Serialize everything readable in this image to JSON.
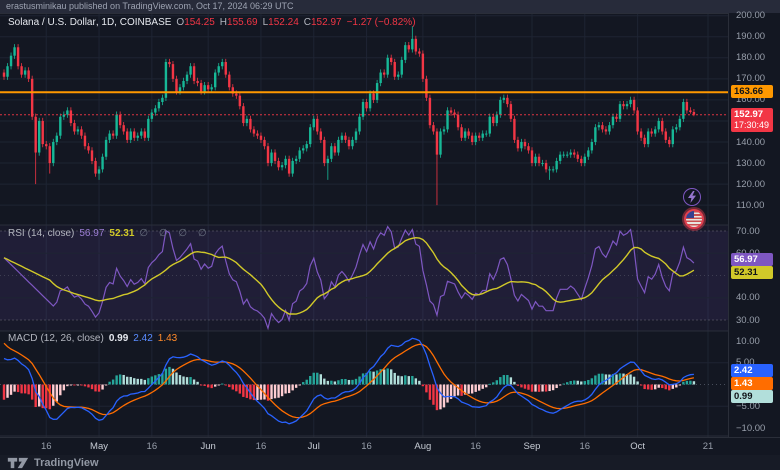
{
  "attribution": "erastusminikau published on TradingView.com, Oct 17, 2024 06:29 UTC",
  "footer": {
    "brand": "TradingView"
  },
  "colors": {
    "background": "#131722",
    "grid": "#1e2433",
    "separator": "#2a2e39",
    "up": "#17b897",
    "down": "#f23645",
    "avg_line": "#ff9800",
    "last_price": "#f23645",
    "rsi_line": "#7e57c2",
    "rsi_ma": "#d1c929",
    "rsi_band_fill": "#7e57c2",
    "macd_line": "#2962ff",
    "macd_signal": "#ff6d00",
    "hist_grow_above": "#26a69a",
    "hist_fall_above": "#b2dfdb",
    "hist_fall_below": "#f23645",
    "hist_grow_below": "#ffcdd2"
  },
  "chart_data": [
    {
      "type": "candlestick",
      "title": "Solana / U.S. Dollar",
      "subtitle": ", 1D, COINBASE",
      "legend": {
        "o_label": "O",
        "o_value": "154.25",
        "h_label": "H",
        "h_value": "155.69",
        "l_label": "L",
        "l_value": "152.24",
        "c_label": "C",
        "c_value": "152.97",
        "change": "−1.27 (−0.82%)"
      },
      "ylim": [
        108,
        201
      ],
      "y_ticks": [
        200,
        190,
        180,
        170,
        160,
        150,
        140,
        130,
        120,
        110
      ],
      "avg_line": {
        "value": 163.66,
        "label": "163.66"
      },
      "last_price": {
        "value": 152.97,
        "label": "152.97",
        "countdown": "17:30:49"
      },
      "x_ticks": [
        {
          "label": "16",
          "day": 12
        },
        {
          "label": "May",
          "day": 27
        },
        {
          "label": "16",
          "day": 42
        },
        {
          "label": "Jun",
          "day": 58
        },
        {
          "label": "16",
          "day": 73
        },
        {
          "label": "Jul",
          "day": 88
        },
        {
          "label": "16",
          "day": 103
        },
        {
          "label": "Aug",
          "day": 119
        },
        {
          "label": "16",
          "day": 134
        },
        {
          "label": "Sep",
          "day": 150
        },
        {
          "label": "16",
          "day": 165
        },
        {
          "label": "Oct",
          "day": 180
        },
        {
          "label": "21",
          "day": 200
        }
      ],
      "candles": [
        [
          173,
          174.5,
          169.5,
          171
        ],
        [
          171,
          177.5,
          169.5,
          176
        ],
        [
          176,
          182.5,
          174.5,
          181
        ],
        [
          181,
          186.5,
          179.5,
          185
        ],
        [
          185,
          186.5,
          174.5,
          176
        ],
        [
          176,
          177.5,
          170.5,
          172
        ],
        [
          172,
          175.5,
          170.5,
          174
        ],
        [
          174,
          175.5,
          168.5,
          170
        ],
        [
          170,
          171.5,
          150.5,
          152
        ],
        [
          152,
          153.5,
          120,
          135
        ],
        [
          135,
          151.5,
          133.5,
          150
        ],
        [
          150,
          151.5,
          137.5,
          139
        ],
        [
          139,
          140.5,
          136.5,
          138
        ],
        [
          138,
          139.5,
          125,
          130
        ],
        [
          130,
          141.5,
          128.5,
          140
        ],
        [
          140,
          144.5,
          138.5,
          143
        ],
        [
          143,
          153.5,
          141.5,
          152
        ],
        [
          152,
          154.5,
          150.5,
          153
        ],
        [
          153,
          156.5,
          151.5,
          155
        ],
        [
          155,
          156.5,
          147.5,
          149
        ],
        [
          149,
          150.5,
          143.5,
          145
        ],
        [
          145,
          147.5,
          143.5,
          146
        ],
        [
          146,
          147.5,
          141.5,
          143
        ],
        [
          143,
          144.5,
          136.5,
          138
        ],
        [
          138,
          139.5,
          134.5,
          136
        ],
        [
          136,
          137.5,
          129.5,
          131
        ],
        [
          131,
          132.5,
          123.5,
          125
        ],
        [
          125,
          128.5,
          122,
          127
        ],
        [
          127,
          134.5,
          125.5,
          133
        ],
        [
          133,
          142.5,
          131.5,
          141
        ],
        [
          141,
          145.5,
          139.5,
          144
        ],
        [
          144,
          145.5,
          141.5,
          143
        ],
        [
          143,
          154.5,
          141.5,
          153
        ],
        [
          153,
          154.5,
          146.5,
          148
        ],
        [
          148,
          149.5,
          143.5,
          145
        ],
        [
          145,
          146.5,
          139.5,
          141
        ],
        [
          141,
          146.5,
          139.5,
          145
        ],
        [
          145,
          146.5,
          140.5,
          142
        ],
        [
          142,
          144.5,
          140.5,
          143
        ],
        [
          143,
          146.5,
          141.5,
          145
        ],
        [
          145,
          146.5,
          140.5,
          142
        ],
        [
          142,
          152.5,
          140.5,
          151
        ],
        [
          151,
          155.5,
          149.5,
          154
        ],
        [
          154,
          157.5,
          152.5,
          156
        ],
        [
          156,
          160.5,
          154.5,
          159
        ],
        [
          159,
          162.5,
          157.5,
          161
        ],
        [
          161,
          179.5,
          159.5,
          178
        ],
        [
          178,
          179.5,
          175.5,
          177
        ],
        [
          177,
          178.5,
          168.5,
          170
        ],
        [
          170,
          171.5,
          162.5,
          164
        ],
        [
          164,
          167.5,
          162.5,
          166
        ],
        [
          166,
          170.5,
          164.5,
          169
        ],
        [
          169,
          173.5,
          167.5,
          172
        ],
        [
          172,
          177.5,
          170.5,
          176
        ],
        [
          176,
          177.5,
          167.5,
          169
        ],
        [
          169,
          170.5,
          166.5,
          168
        ],
        [
          168,
          169.5,
          162.5,
          164
        ],
        [
          164,
          168.5,
          162.5,
          167
        ],
        [
          167,
          168.5,
          163.5,
          165
        ],
        [
          165,
          167.5,
          163.5,
          166
        ],
        [
          166,
          174.5,
          164.5,
          173
        ],
        [
          173,
          177.5,
          171.5,
          176
        ],
        [
          176,
          179.5,
          174.5,
          178
        ],
        [
          178,
          179.5,
          170.5,
          172
        ],
        [
          172,
          173.5,
          164.5,
          166
        ],
        [
          166,
          167.5,
          161.5,
          163
        ],
        [
          163,
          164.5,
          160.5,
          162
        ],
        [
          162,
          163.5,
          155.5,
          157
        ],
        [
          157,
          158.5,
          147.5,
          149
        ],
        [
          149,
          152.5,
          147.5,
          151
        ],
        [
          151,
          152.5,
          144.5,
          146
        ],
        [
          146,
          147.5,
          142.5,
          144
        ],
        [
          144,
          145.5,
          141.5,
          143
        ],
        [
          143,
          144.5,
          139.5,
          141
        ],
        [
          141,
          142.5,
          136.5,
          138
        ],
        [
          138,
          139.5,
          128.5,
          130
        ],
        [
          130,
          136.5,
          128.5,
          135
        ],
        [
          135,
          136.5,
          129.5,
          131
        ],
        [
          131,
          132.5,
          126.5,
          128
        ],
        [
          128,
          130.5,
          126.5,
          129
        ],
        [
          129,
          133.5,
          127.5,
          132
        ],
        [
          132,
          133.5,
          123.5,
          125
        ],
        [
          125,
          132.5,
          123.5,
          131
        ],
        [
          131,
          133.5,
          129.5,
          132
        ],
        [
          132,
          137.5,
          130.5,
          136
        ],
        [
          136,
          138.5,
          134.5,
          137
        ],
        [
          137,
          140.5,
          135.5,
          139
        ],
        [
          139,
          148.5,
          137.5,
          147
        ],
        [
          147,
          152.5,
          145.5,
          151
        ],
        [
          151,
          152.5,
          143.5,
          145
        ],
        [
          145,
          146.5,
          139.5,
          141
        ],
        [
          141,
          142.5,
          128.5,
          130
        ],
        [
          130,
          133.5,
          122,
          132
        ],
        [
          132,
          139.5,
          130.5,
          138
        ],
        [
          138,
          139.5,
          133.5,
          135
        ],
        [
          135,
          142.5,
          133.5,
          141
        ],
        [
          141,
          144.5,
          139.5,
          143
        ],
        [
          143,
          144.5,
          139.5,
          141
        ],
        [
          141,
          142.5,
          136.5,
          138
        ],
        [
          138,
          142.5,
          136.5,
          141
        ],
        [
          141,
          146.5,
          139.5,
          145
        ],
        [
          145,
          153.5,
          143.5,
          152
        ],
        [
          152,
          160.5,
          150.5,
          159
        ],
        [
          159,
          160.5,
          154.5,
          156
        ],
        [
          156,
          164.5,
          154.5,
          163
        ],
        [
          163,
          164.5,
          158.5,
          160
        ],
        [
          160,
          169.5,
          158.5,
          168
        ],
        [
          168,
          174.5,
          166.5,
          173
        ],
        [
          173,
          174.5,
          170.5,
          172
        ],
        [
          172,
          181.5,
          170.5,
          180
        ],
        [
          180,
          181.5,
          176.5,
          178
        ],
        [
          178,
          179.5,
          169.5,
          171
        ],
        [
          171,
          173.5,
          169.5,
          172
        ],
        [
          172,
          180.5,
          170.5,
          179
        ],
        [
          179,
          187.5,
          177.5,
          186
        ],
        [
          186,
          187.5,
          182.5,
          184
        ],
        [
          184,
          195,
          182.5,
          189
        ],
        [
          189,
          190.5,
          181.5,
          183
        ],
        [
          183,
          184.5,
          180.5,
          182
        ],
        [
          182,
          183.5,
          168.5,
          170
        ],
        [
          170,
          171.5,
          159.5,
          161
        ],
        [
          161,
          162.5,
          146.5,
          148
        ],
        [
          148,
          149.5,
          143.5,
          145
        ],
        [
          145,
          146.5,
          110,
          134
        ],
        [
          134,
          146.5,
          132.5,
          145
        ],
        [
          145,
          147.5,
          143.5,
          146
        ],
        [
          146,
          156.5,
          144.5,
          155
        ],
        [
          155,
          156.5,
          152.5,
          154
        ],
        [
          154,
          155.5,
          151.5,
          153
        ],
        [
          153,
          154.5,
          145.5,
          147
        ],
        [
          147,
          148.5,
          140.5,
          142
        ],
        [
          142,
          146.5,
          140.5,
          145
        ],
        [
          145,
          146.5,
          141.5,
          143
        ],
        [
          143,
          144.5,
          138.5,
          140
        ],
        [
          140,
          144.5,
          138.5,
          143
        ],
        [
          143,
          144.5,
          140.5,
          142
        ],
        [
          142,
          145.5,
          140.5,
          144
        ],
        [
          144,
          145.5,
          142.5,
          144
        ],
        [
          144,
          153.5,
          142.5,
          152
        ],
        [
          152,
          153.5,
          147.5,
          149
        ],
        [
          149,
          154.5,
          147.5,
          153
        ],
        [
          153,
          161.5,
          151.5,
          160
        ],
        [
          160,
          162.5,
          158.5,
          161
        ],
        [
          161,
          162.5,
          156.5,
          158
        ],
        [
          158,
          159.5,
          149.5,
          151
        ],
        [
          151,
          152.5,
          139.5,
          141
        ],
        [
          141,
          142.5,
          135.5,
          137
        ],
        [
          137,
          141.5,
          135.5,
          140
        ],
        [
          140,
          141.5,
          136.5,
          138
        ],
        [
          138,
          139.5,
          134.5,
          136
        ],
        [
          136,
          137.5,
          128.5,
          130
        ],
        [
          130,
          134.5,
          128.5,
          133
        ],
        [
          133,
          134.5,
          128.5,
          130
        ],
        [
          130,
          131.5,
          128.5,
          130
        ],
        [
          130,
          131.5,
          125.5,
          127
        ],
        [
          127,
          128.5,
          122,
          127
        ],
        [
          127,
          128.5,
          125.5,
          127
        ],
        [
          127,
          132.5,
          125.5,
          131
        ],
        [
          131,
          135.5,
          129.5,
          134
        ],
        [
          134,
          135.5,
          132.5,
          134
        ],
        [
          134,
          135.5,
          132.5,
          134
        ],
        [
          134,
          136.5,
          132.5,
          135
        ],
        [
          135,
          136.5,
          132.5,
          134
        ],
        [
          134,
          135.5,
          130.5,
          132
        ],
        [
          132,
          133.5,
          128.5,
          130
        ],
        [
          130,
          134.5,
          128.5,
          133
        ],
        [
          133,
          137.5,
          131.5,
          136
        ],
        [
          136,
          141.5,
          134.5,
          140
        ],
        [
          140,
          148.5,
          138.5,
          147
        ],
        [
          147,
          149.5,
          145.5,
          148
        ],
        [
          148,
          149.5,
          144.5,
          146
        ],
        [
          146,
          147.5,
          143.5,
          145
        ],
        [
          145,
          149.5,
          143.5,
          148
        ],
        [
          148,
          153.5,
          146.5,
          152
        ],
        [
          152,
          153.5,
          149.5,
          151
        ],
        [
          151,
          159.5,
          149.5,
          158
        ],
        [
          158,
          159.5,
          155.5,
          157
        ],
        [
          157,
          159.5,
          155.5,
          158
        ],
        [
          158,
          161.5,
          156.5,
          160
        ],
        [
          160,
          161.5,
          153.5,
          155
        ],
        [
          155,
          156.5,
          143.5,
          145
        ],
        [
          145,
          146.5,
          140.5,
          142
        ],
        [
          142,
          143.5,
          137.5,
          139
        ],
        [
          139,
          146.5,
          137.5,
          145
        ],
        [
          145,
          146.5,
          142.5,
          144
        ],
        [
          144,
          147.5,
          142.5,
          146
        ],
        [
          146,
          151.5,
          144.5,
          150
        ],
        [
          150,
          151.5,
          143.5,
          145
        ],
        [
          145,
          146.5,
          139.5,
          141
        ],
        [
          141,
          142.5,
          137.5,
          139
        ],
        [
          139,
          147.5,
          137.5,
          146
        ],
        [
          146,
          148.5,
          144.5,
          147
        ],
        [
          147,
          152.5,
          145.5,
          151
        ],
        [
          151,
          160.5,
          149.5,
          159
        ],
        [
          159,
          160.5,
          153.5,
          155
        ],
        [
          155,
          156.5,
          153.5,
          154.25
        ],
        [
          154.25,
          155.69,
          152.24,
          152.97
        ]
      ]
    },
    {
      "type": "line",
      "name": "rsi",
      "title": "RSI",
      "params": "(14, close)",
      "value_main": "56.97",
      "value_ma": "52.31",
      "empty_slots": "∅ ∅ ∅ ∅",
      "ylim": [
        25,
        75
      ],
      "y_ticks": [
        70,
        60,
        50,
        40,
        30
      ],
      "band_levels": [
        70,
        50,
        30
      ],
      "period": 14,
      "ma_period": 14
    },
    {
      "type": "macd",
      "name": "macd",
      "title": "MACD",
      "params": "(12, 26, close)",
      "value_hist": "0.99",
      "value_macd": "2.42",
      "value_signal": "1.43",
      "ylim": [
        -12,
        12
      ],
      "y_ticks": [
        10,
        5,
        0,
        -5,
        -10
      ],
      "fast": 12,
      "slow": 26,
      "signal": 9
    }
  ],
  "events": [
    {
      "name": "lightning"
    },
    {
      "name": "us-flag"
    }
  ]
}
